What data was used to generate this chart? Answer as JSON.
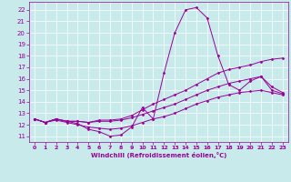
{
  "title": "",
  "xlabel": "Windchill (Refroidissement éolien,°C)",
  "ylabel": "",
  "background_color": "#c8eaea",
  "grid_color": "#ffffff",
  "line_color": "#990099",
  "xlim": [
    -0.5,
    23.5
  ],
  "ylim": [
    10.5,
    22.7
  ],
  "yticks": [
    11,
    12,
    13,
    14,
    15,
    16,
    17,
    18,
    19,
    20,
    21,
    22
  ],
  "xticks": [
    0,
    1,
    2,
    3,
    4,
    5,
    6,
    7,
    8,
    9,
    10,
    11,
    12,
    13,
    14,
    15,
    16,
    17,
    18,
    19,
    20,
    21,
    22,
    23
  ],
  "lines": [
    {
      "x": [
        0,
        1,
        2,
        3,
        4,
        5,
        6,
        7,
        8,
        9,
        10,
        11,
        12,
        13,
        14,
        15,
        16,
        17,
        18,
        19,
        20,
        21,
        22,
        23
      ],
      "y": [
        12.5,
        12.2,
        12.5,
        12.3,
        12.1,
        11.6,
        11.4,
        11.0,
        11.1,
        11.8,
        13.5,
        12.5,
        16.5,
        20.0,
        22.0,
        22.2,
        21.3,
        18.0,
        15.5,
        15.0,
        15.8,
        16.2,
        15.0,
        14.7
      ]
    },
    {
      "x": [
        0,
        1,
        2,
        3,
        4,
        5,
        6,
        7,
        8,
        9,
        10,
        11,
        12,
        13,
        14,
        15,
        16,
        17,
        18,
        19,
        20,
        21,
        22,
        23
      ],
      "y": [
        12.5,
        12.2,
        12.5,
        12.3,
        12.3,
        12.2,
        12.4,
        12.4,
        12.5,
        12.8,
        13.3,
        13.8,
        14.2,
        14.6,
        15.0,
        15.5,
        16.0,
        16.5,
        16.8,
        17.0,
        17.2,
        17.5,
        17.7,
        17.8
      ]
    },
    {
      "x": [
        0,
        1,
        2,
        3,
        4,
        5,
        6,
        7,
        8,
        9,
        10,
        11,
        12,
        13,
        14,
        15,
        16,
        17,
        18,
        19,
        20,
        21,
        22,
        23
      ],
      "y": [
        12.5,
        12.2,
        12.5,
        12.3,
        12.3,
        12.2,
        12.3,
        12.3,
        12.4,
        12.6,
        12.9,
        13.2,
        13.5,
        13.8,
        14.2,
        14.6,
        15.0,
        15.3,
        15.6,
        15.8,
        16.0,
        16.2,
        15.3,
        14.8
      ]
    },
    {
      "x": [
        0,
        1,
        2,
        3,
        4,
        5,
        6,
        7,
        8,
        9,
        10,
        11,
        12,
        13,
        14,
        15,
        16,
        17,
        18,
        19,
        20,
        21,
        22,
        23
      ],
      "y": [
        12.5,
        12.2,
        12.4,
        12.2,
        12.0,
        11.8,
        11.7,
        11.6,
        11.7,
        11.9,
        12.2,
        12.5,
        12.7,
        13.0,
        13.4,
        13.8,
        14.1,
        14.4,
        14.6,
        14.8,
        14.9,
        15.0,
        14.8,
        14.6
      ]
    }
  ]
}
